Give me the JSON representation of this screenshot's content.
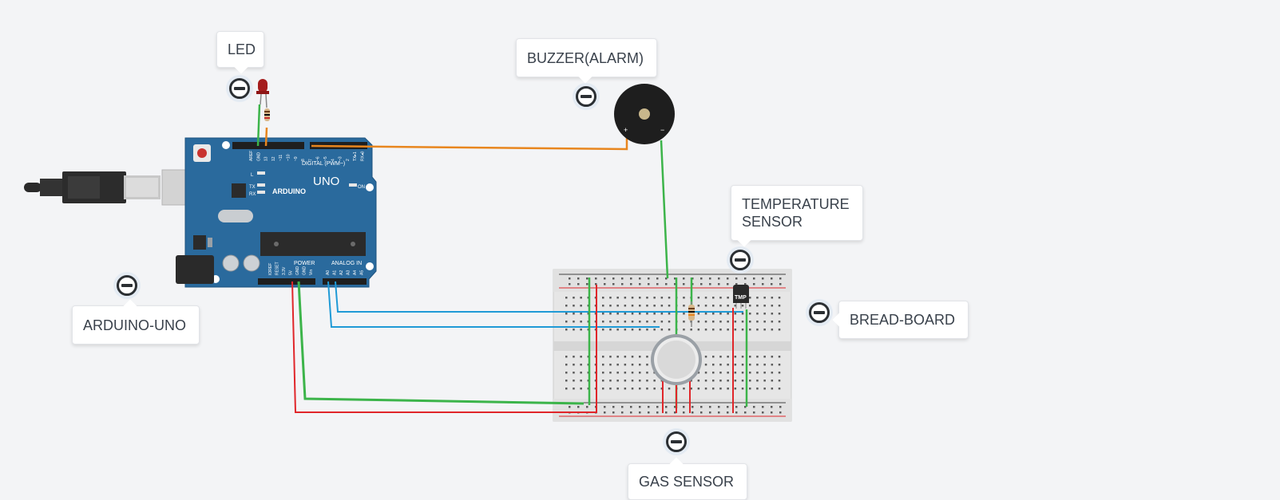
{
  "notes": {
    "led": "LED",
    "buzzer": "BUZZER(ALARM)",
    "temperature": "TEMPERATURE\nSENSOR",
    "breadboard": "BREAD-BOARD",
    "arduino": "ARDUINO-UNO",
    "gas": "GAS SENSOR"
  },
  "icons": {
    "collapse": "minus-circle-icon"
  },
  "arduino": {
    "brand": "ARDUINO",
    "model": "UNO",
    "digital_label": "DIGITAL (PWM~)",
    "power_label": "POWER",
    "analog_label": "ANALOG IN",
    "on_label": "ON",
    "tx_label": "TX",
    "rx_label": "RX",
    "l_label": "L",
    "top_pins": [
      "AREF",
      "GND",
      "13",
      "12",
      "~11",
      "~10",
      "~9",
      "8",
      "7",
      "~6",
      "~5",
      "4",
      "~3",
      "2",
      "TX▸1",
      "RX◂0"
    ],
    "power_pins": [
      "IOREF",
      "RESET",
      "3.3V",
      "5V",
      "GND",
      "GND",
      "Vin"
    ],
    "analog_pins": [
      "A0",
      "A1",
      "A2",
      "A3",
      "A4",
      "A5"
    ]
  },
  "temp_sensor_label": "TMP",
  "colors": {
    "board": "#2a6a9d",
    "wire_orange": "#e8861e",
    "wire_green": "#3cb44a",
    "wire_red": "#e0262a",
    "wire_blue": "#1f9ad6",
    "breadboard": "#e6e6e6"
  }
}
